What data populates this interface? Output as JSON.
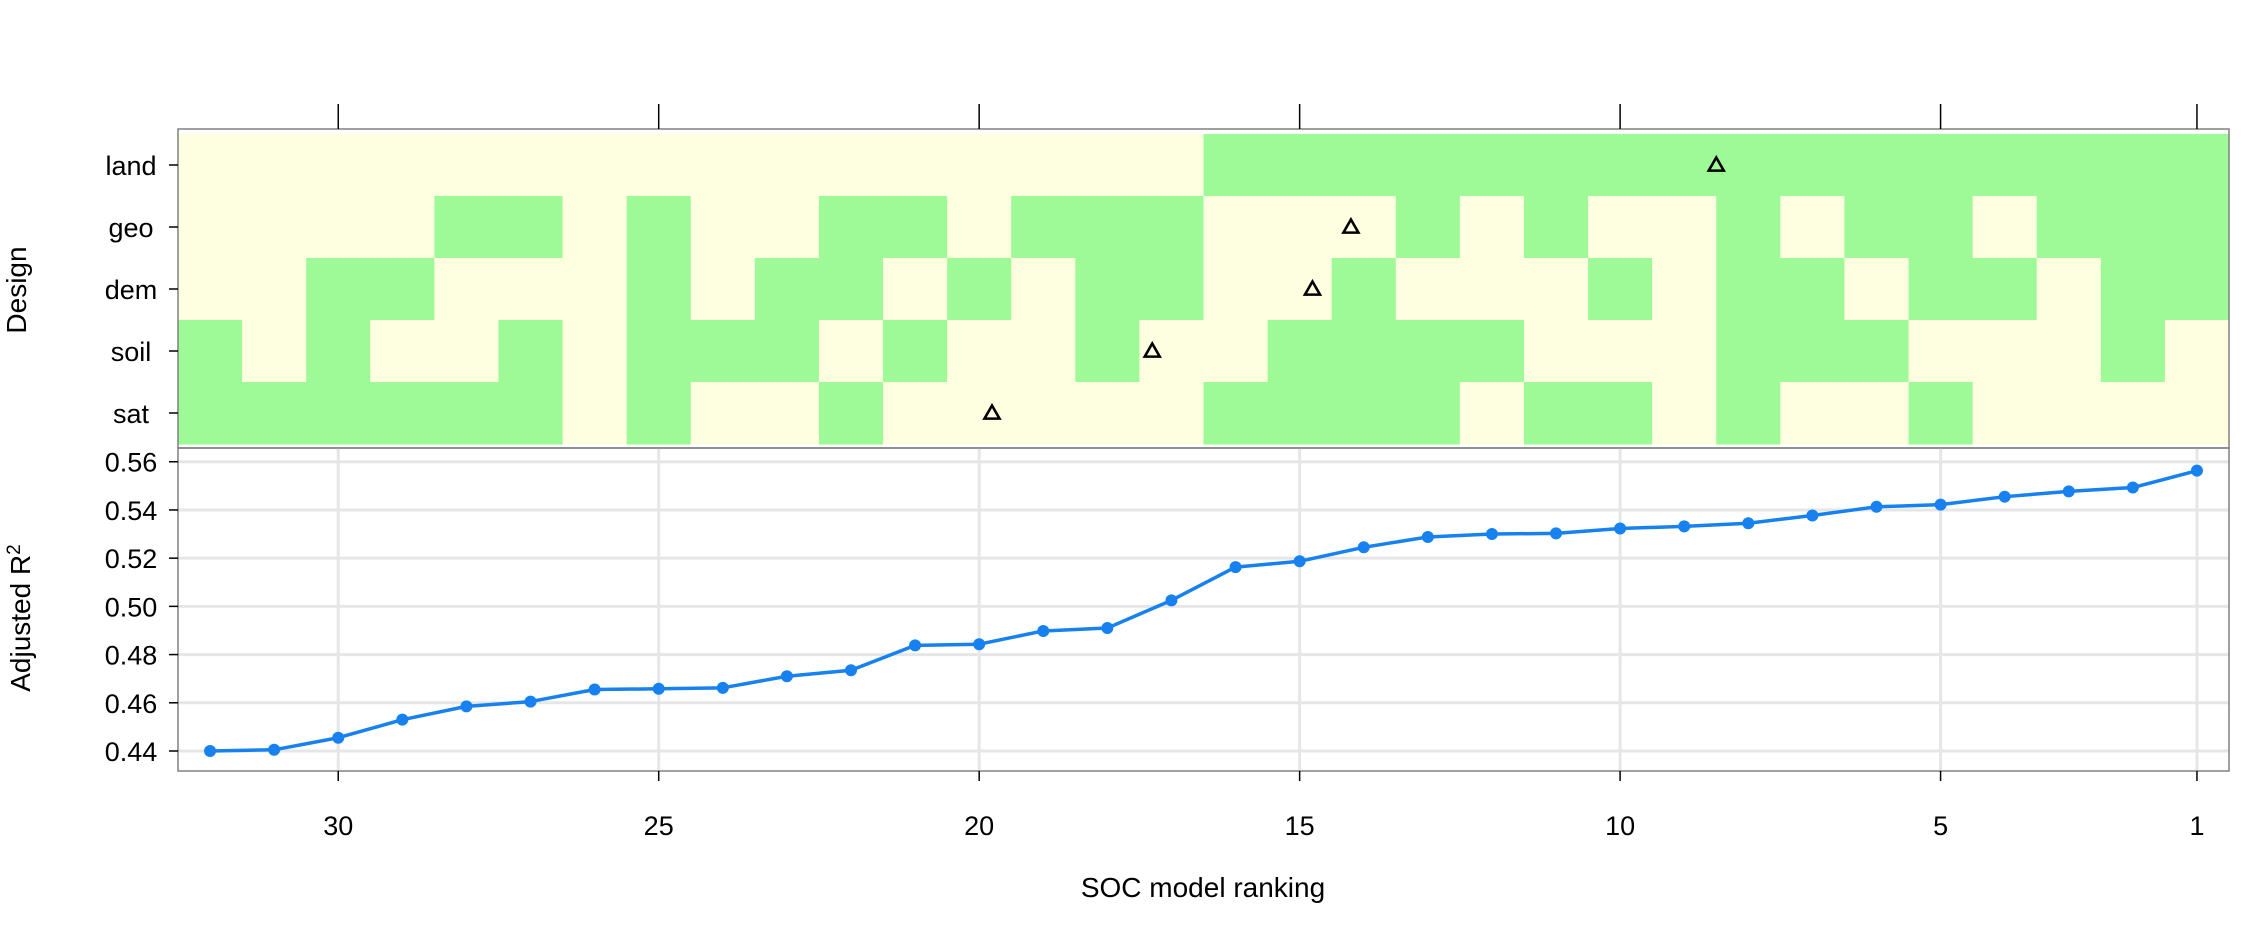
{
  "chart_data": [
    {
      "type": "heatmap",
      "panel": "design",
      "ylabel": "Design",
      "rows": [
        "land",
        "geo",
        "dem",
        "soil",
        "sat"
      ],
      "x": [
        32,
        31,
        30,
        29,
        28,
        27,
        26,
        25,
        24,
        23,
        22,
        21,
        20,
        19,
        18,
        17,
        16,
        15,
        14,
        13,
        12,
        11,
        10,
        9,
        8,
        7,
        6,
        5,
        4,
        3,
        2,
        1
      ],
      "included": {
        "land": [
          0,
          0,
          0,
          0,
          0,
          0,
          0,
          0,
          0,
          0,
          0,
          0,
          0,
          0,
          0,
          0,
          1,
          1,
          1,
          1,
          1,
          1,
          1,
          1,
          1,
          1,
          1,
          1,
          1,
          1,
          1,
          1
        ],
        "geo": [
          0,
          0,
          0,
          0,
          1,
          1,
          0,
          1,
          0,
          0,
          1,
          1,
          0,
          1,
          1,
          1,
          0,
          0,
          0,
          1,
          0,
          1,
          0,
          0,
          1,
          0,
          1,
          1,
          0,
          1,
          1,
          1
        ],
        "dem": [
          0,
          0,
          1,
          1,
          0,
          0,
          0,
          1,
          0,
          1,
          1,
          0,
          1,
          0,
          1,
          1,
          0,
          0,
          1,
          0,
          0,
          0,
          1,
          0,
          1,
          1,
          0,
          1,
          1,
          0,
          1,
          1
        ],
        "soil": [
          1,
          0,
          1,
          0,
          0,
          1,
          0,
          1,
          1,
          1,
          0,
          1,
          0,
          0,
          1,
          0,
          0,
          1,
          1,
          1,
          1,
          0,
          0,
          0,
          1,
          1,
          1,
          0,
          0,
          0,
          1,
          0
        ],
        "sat": [
          1,
          1,
          1,
          1,
          1,
          1,
          0,
          1,
          0,
          0,
          1,
          0,
          0,
          0,
          0,
          0,
          1,
          1,
          1,
          1,
          0,
          1,
          1,
          0,
          1,
          0,
          0,
          1,
          0,
          0,
          0,
          0
        ]
      },
      "markers": [
        {
          "row": "land",
          "x": 8.5
        },
        {
          "row": "geo",
          "x": 14.2
        },
        {
          "row": "dem",
          "x": 14.8
        },
        {
          "row": "soil",
          "x": 17.3
        },
        {
          "row": "sat",
          "x": 19.8
        }
      ],
      "colors": {
        "included": "#9efa97",
        "excluded": "#fefee0",
        "marker": "#000000"
      }
    },
    {
      "type": "line",
      "panel": "r2",
      "xlabel": "SOC model ranking",
      "ylabel": "Adjusted R",
      "ylabel_superscript": "2",
      "x": [
        32,
        31,
        30,
        29,
        28,
        27,
        26,
        25,
        24,
        23,
        22,
        21,
        20,
        19,
        18,
        17,
        16,
        15,
        14,
        13,
        12,
        11,
        10,
        9,
        8,
        7,
        6,
        5,
        4,
        3,
        2,
        1
      ],
      "values": [
        0.44,
        0.4405,
        0.4455,
        0.453,
        0.4585,
        0.4605,
        0.4655,
        0.4658,
        0.4662,
        0.471,
        0.4735,
        0.4838,
        0.4843,
        0.4898,
        0.491,
        0.5025,
        0.5163,
        0.5187,
        0.5245,
        0.5288,
        0.53,
        0.5303,
        0.5323,
        0.5332,
        0.5345,
        0.5377,
        0.5413,
        0.5422,
        0.5455,
        0.5477,
        0.5493,
        0.5563
      ],
      "xlim": [
        32.5,
        0.5
      ],
      "ylim": [
        0.4317,
        0.5657
      ],
      "xticks": [
        30,
        25,
        20,
        15,
        10,
        5,
        1
      ],
      "yticks": [
        0.44,
        0.46,
        0.48,
        0.5,
        0.52,
        0.54,
        0.56
      ],
      "ytick_labels": [
        "0.44",
        "0.46",
        "0.48",
        "0.50",
        "0.52",
        "0.54",
        "0.56"
      ],
      "grid": true,
      "colors": {
        "line": "#1681ef",
        "grid": "#e6e6e6"
      }
    }
  ]
}
